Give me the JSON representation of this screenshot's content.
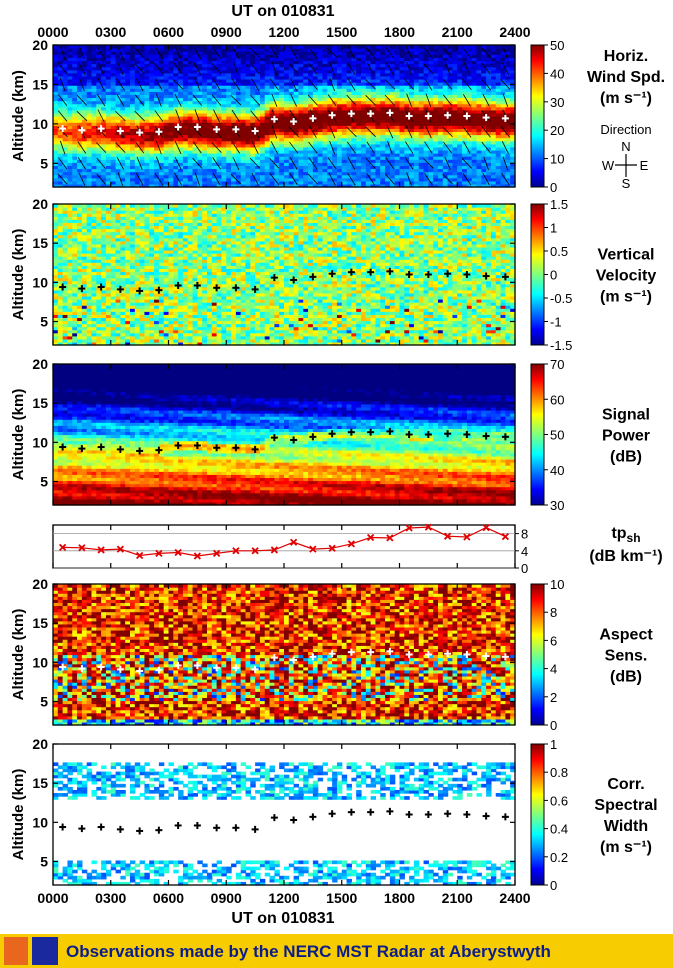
{
  "header": {
    "title": "UT on 010831"
  },
  "xaxis": {
    "label": "UT on 010831",
    "ticks": [
      "0000",
      "0300",
      "0600",
      "0900",
      "1200",
      "1500",
      "1800",
      "2100",
      "2400"
    ],
    "range_hours": [
      0,
      24
    ]
  },
  "footer": {
    "text": "Observations made by the NERC MST Radar at Aberystwyth"
  },
  "chart_data": [
    {
      "type": "heatmap",
      "panel_id": "horiz-wind",
      "title": "Horiz. Wind Spd.",
      "units": "(m s⁻¹)",
      "ylabel": "Altitude (km)",
      "ylim": [
        2,
        20
      ],
      "yticks": [
        5,
        10,
        15,
        20
      ],
      "colorbar": {
        "min": 0,
        "max": 50,
        "ticks": [
          0,
          10,
          20,
          30,
          40,
          50
        ]
      },
      "extra_legend": {
        "title": "Direction",
        "N": "N",
        "S": "S",
        "E": "E",
        "W": "W"
      },
      "tropopause_marker_color": "#ffffff"
    },
    {
      "type": "heatmap",
      "panel_id": "vertical-velocity",
      "title": "Vertical Velocity",
      "units": "(m s⁻¹)",
      "ylabel": "Altitude (km)",
      "ylim": [
        2,
        20
      ],
      "yticks": [
        5,
        10,
        15,
        20
      ],
      "colorbar": {
        "min": -1.5,
        "max": 1.5,
        "ticks": [
          -1.5,
          -1,
          -0.5,
          0,
          0.5,
          1,
          1.5
        ]
      },
      "tropopause_marker_color": "#000000"
    },
    {
      "type": "heatmap",
      "panel_id": "signal-power",
      "title": "Signal Power",
      "units": "(dB)",
      "ylabel": "Altitude (km)",
      "ylim": [
        2,
        20
      ],
      "yticks": [
        5,
        10,
        15,
        20
      ],
      "colorbar": {
        "min": 30,
        "max": 70,
        "ticks": [
          30,
          40,
          50,
          60,
          70
        ]
      },
      "tropopause_marker_color": "#000000"
    },
    {
      "type": "line",
      "panel_id": "tp-sharpness",
      "title": "tp",
      "title_sub": "sh",
      "units": "(dB km⁻¹)",
      "ylim": [
        0,
        10
      ],
      "yticks": [
        0,
        4,
        8
      ],
      "series": [
        {
          "color": "#e00000",
          "x": [
            0.5,
            1.5,
            2.5,
            3.5,
            4.5,
            5.5,
            6.5,
            7.5,
            8.5,
            9.5,
            10.5,
            11.5,
            12.5,
            13.5,
            14.5,
            15.5,
            16.5,
            17.5,
            18.5,
            19.5,
            20.5,
            21.5,
            22.5,
            23.5
          ],
          "y": [
            4.8,
            4.7,
            4.2,
            4.4,
            2.9,
            3.4,
            3.6,
            2.8,
            3.4,
            4.0,
            4.0,
            4.2,
            6.0,
            4.4,
            4.6,
            5.6,
            7.1,
            7.0,
            9.3,
            9.5,
            7.4,
            7.2,
            9.4,
            7.3
          ]
        }
      ]
    },
    {
      "type": "heatmap",
      "panel_id": "aspect-sensitivity",
      "title": "Aspect Sens.",
      "units": "(dB)",
      "ylabel": "Altitude (km)",
      "ylim": [
        2,
        20
      ],
      "yticks": [
        5,
        10,
        15,
        20
      ],
      "colorbar": {
        "min": 0,
        "max": 10,
        "ticks": [
          0,
          2,
          4,
          6,
          8,
          10
        ]
      },
      "tropopause_marker_color": "#ffffff"
    },
    {
      "type": "heatmap",
      "panel_id": "spectral-width",
      "title": "Corr. Spectral Width",
      "units": "(m s⁻¹)",
      "ylabel": "Altitude (km)",
      "ylim": [
        2,
        20
      ],
      "yticks": [
        5,
        10,
        15,
        20
      ],
      "colorbar": {
        "min": 0,
        "max": 1,
        "ticks": [
          0,
          0.2,
          0.4,
          0.6,
          0.8,
          1
        ]
      },
      "tropopause_marker_color": "#000000"
    }
  ],
  "tropopause": {
    "x": [
      0.5,
      1.5,
      2.5,
      3.5,
      4.5,
      5.5,
      6.5,
      7.5,
      8.5,
      9.5,
      10.5,
      11.5,
      12.5,
      13.5,
      14.5,
      15.5,
      16.5,
      17.5,
      18.5,
      19.5,
      20.5,
      21.5,
      22.5,
      23.5
    ],
    "y": [
      9.4,
      9.2,
      9.4,
      9.1,
      8.9,
      9.0,
      9.6,
      9.6,
      9.3,
      9.3,
      9.1,
      10.6,
      10.3,
      10.7,
      11.1,
      11.3,
      11.3,
      11.4,
      11.0,
      11.0,
      11.1,
      11.0,
      10.8,
      10.7
    ]
  }
}
